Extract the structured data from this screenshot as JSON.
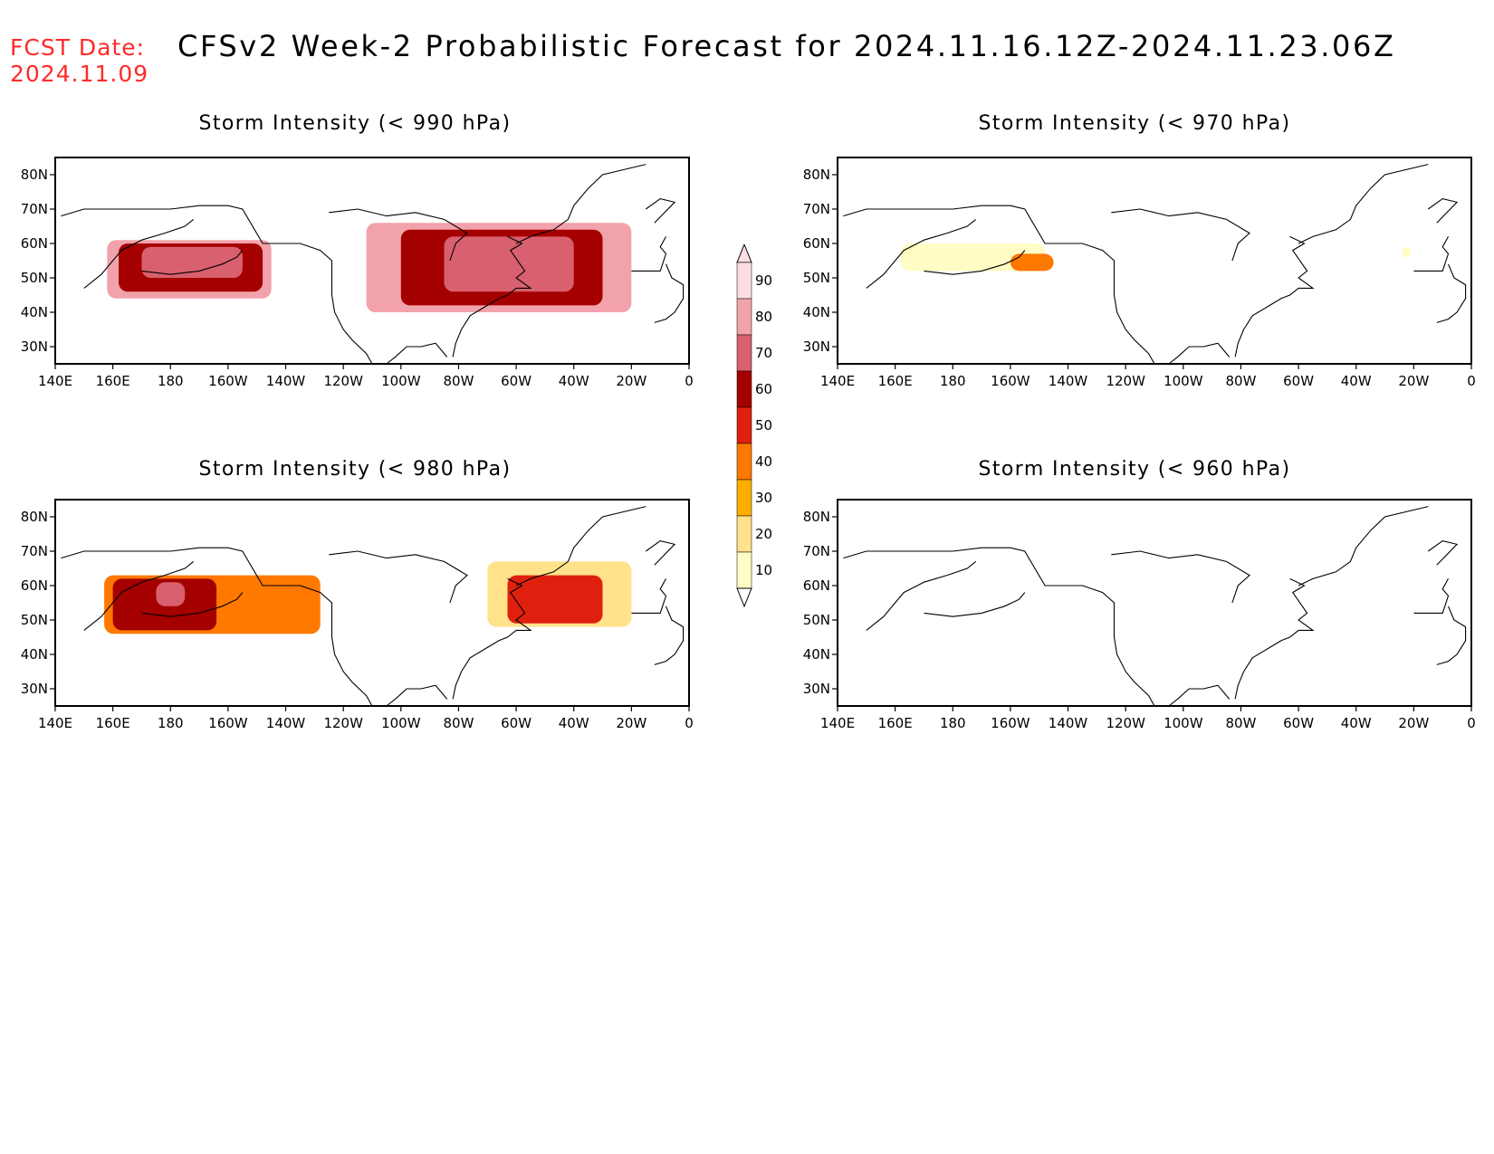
{
  "fcst_date": {
    "label": "FCST Date:",
    "value": "2024.11.09"
  },
  "title": "CFSv2 Week-2 Probabilistic Forecast for 2024.11.16.12Z-2024.11.23.06Z",
  "colors": {
    "fcst_text": "#ff2a2a",
    "levels": [
      "#fffcc4",
      "#ffe28a",
      "#ffae00",
      "#ff7800",
      "#e0200f",
      "#a50000",
      "#d9606e",
      "#f2a2ab",
      "#fbdde3"
    ]
  },
  "axes": {
    "lon_ticks": [
      "140E",
      "160E",
      "180",
      "160W",
      "140W",
      "120W",
      "100W",
      "80W",
      "60W",
      "40W",
      "20W",
      "0"
    ],
    "lat_ticks": [
      "80N",
      "70N",
      "60N",
      "50N",
      "40N",
      "30N"
    ],
    "lon_range": [
      140,
      360
    ],
    "lat_range": [
      25,
      85
    ]
  },
  "panels": [
    {
      "id": "p990",
      "title": "Storm Intensity (< 990 hPa)",
      "max_probability": 90,
      "regions": [
        {
          "lon": [
            158,
            215
          ],
          "lat": [
            44,
            61
          ],
          "level": 7
        },
        {
          "lon": [
            162,
            212
          ],
          "lat": [
            46,
            60
          ],
          "level": 5
        },
        {
          "lon": [
            170,
            205
          ],
          "lat": [
            50,
            59
          ],
          "level": 6
        },
        {
          "lon": [
            248,
            340
          ],
          "lat": [
            40,
            66
          ],
          "level": 7
        },
        {
          "lon": [
            260,
            330
          ],
          "lat": [
            42,
            64
          ],
          "level": 5
        },
        {
          "lon": [
            275,
            320
          ],
          "lat": [
            46,
            62
          ],
          "level": 6
        }
      ]
    },
    {
      "id": "p970",
      "title": "Storm Intensity (< 970 hPa)",
      "max_probability": 50,
      "regions": [
        {
          "lon": [
            162,
            212
          ],
          "lat": [
            52,
            60
          ],
          "level": 0
        },
        {
          "lon": [
            200,
            215
          ],
          "lat": [
            52,
            57
          ],
          "level": 3
        },
        {
          "lon": [
            336,
            339
          ],
          "lat": [
            56,
            59
          ],
          "level": 0
        }
      ]
    },
    {
      "id": "p980",
      "title": "Storm Intensity (< 980 hPa)",
      "max_probability": 80,
      "regions": [
        {
          "lon": [
            157,
            232
          ],
          "lat": [
            46,
            63
          ],
          "level": 3
        },
        {
          "lon": [
            160,
            196
          ],
          "lat": [
            47,
            62
          ],
          "level": 5
        },
        {
          "lon": [
            175,
            185
          ],
          "lat": [
            54,
            61
          ],
          "level": 6
        },
        {
          "lon": [
            290,
            340
          ],
          "lat": [
            48,
            67
          ],
          "level": 1
        },
        {
          "lon": [
            297,
            330
          ],
          "lat": [
            49,
            63
          ],
          "level": 4
        }
      ]
    },
    {
      "id": "p960",
      "title": "Storm Intensity (< 960 hPa)",
      "max_probability": 0,
      "regions": []
    }
  ],
  "colorbar": {
    "labels": [
      "90",
      "80",
      "70",
      "60",
      "50",
      "40",
      "30",
      "20",
      "10"
    ]
  }
}
